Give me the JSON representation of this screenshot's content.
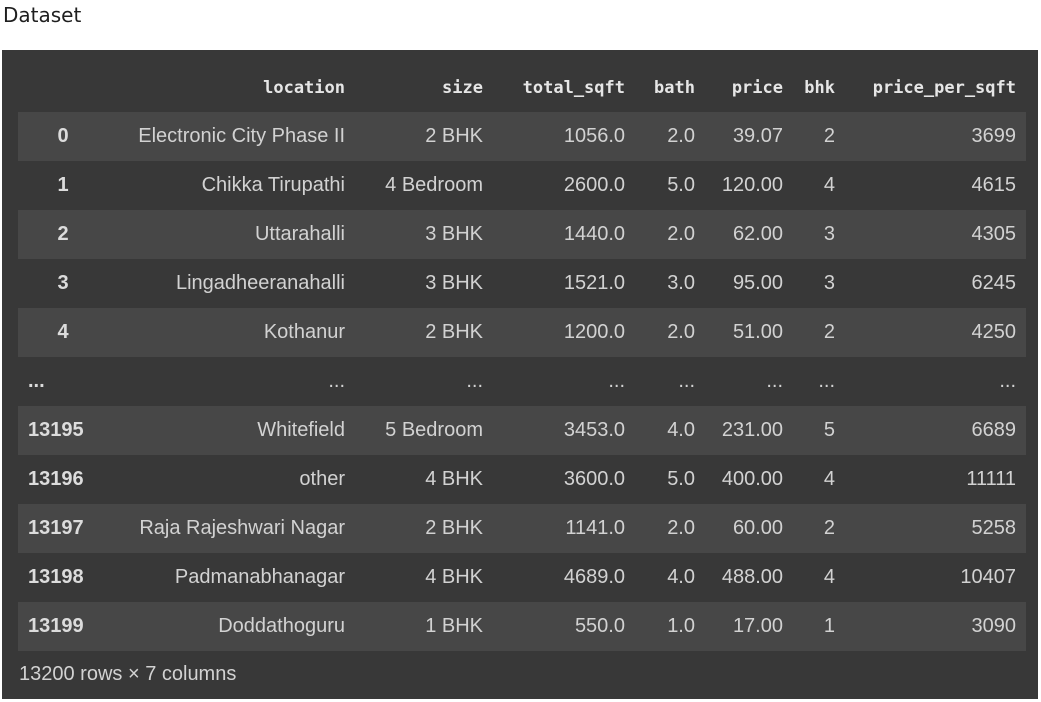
{
  "heading": "Dataset",
  "columns": [
    "",
    "location",
    "size",
    "total_sqft",
    "bath",
    "price",
    "bhk",
    "price_per_sqft"
  ],
  "rows": [
    [
      "0",
      "Electronic City Phase II",
      "2 BHK",
      "1056.0",
      "2.0",
      "39.07",
      "2",
      "3699"
    ],
    [
      "1",
      "Chikka Tirupathi",
      "4 Bedroom",
      "2600.0",
      "5.0",
      "120.00",
      "4",
      "4615"
    ],
    [
      "2",
      "Uttarahalli",
      "3 BHK",
      "1440.0",
      "2.0",
      "62.00",
      "3",
      "4305"
    ],
    [
      "3",
      "Lingadheeranahalli",
      "3 BHK",
      "1521.0",
      "3.0",
      "95.00",
      "3",
      "6245"
    ],
    [
      "4",
      "Kothanur",
      "2 BHK",
      "1200.0",
      "2.0",
      "51.00",
      "2",
      "4250"
    ],
    [
      "...",
      "...",
      "...",
      "...",
      "...",
      "...",
      "...",
      "..."
    ],
    [
      "13195",
      "Whitefield",
      "5 Bedroom",
      "3453.0",
      "4.0",
      "231.00",
      "5",
      "6689"
    ],
    [
      "13196",
      "other",
      "4 BHK",
      "3600.0",
      "5.0",
      "400.00",
      "4",
      "11111"
    ],
    [
      "13197",
      "Raja Rajeshwari Nagar",
      "2 BHK",
      "1141.0",
      "2.0",
      "60.00",
      "2",
      "5258"
    ],
    [
      "13198",
      "Padmanabhanagar",
      "4 BHK",
      "4689.0",
      "4.0",
      "488.00",
      "4",
      "10407"
    ],
    [
      "13199",
      "Doddathoguru",
      "1 BHK",
      "550.0",
      "1.0",
      "17.00",
      "1",
      "3090"
    ]
  ],
  "footer": "13200 rows × 7 columns"
}
